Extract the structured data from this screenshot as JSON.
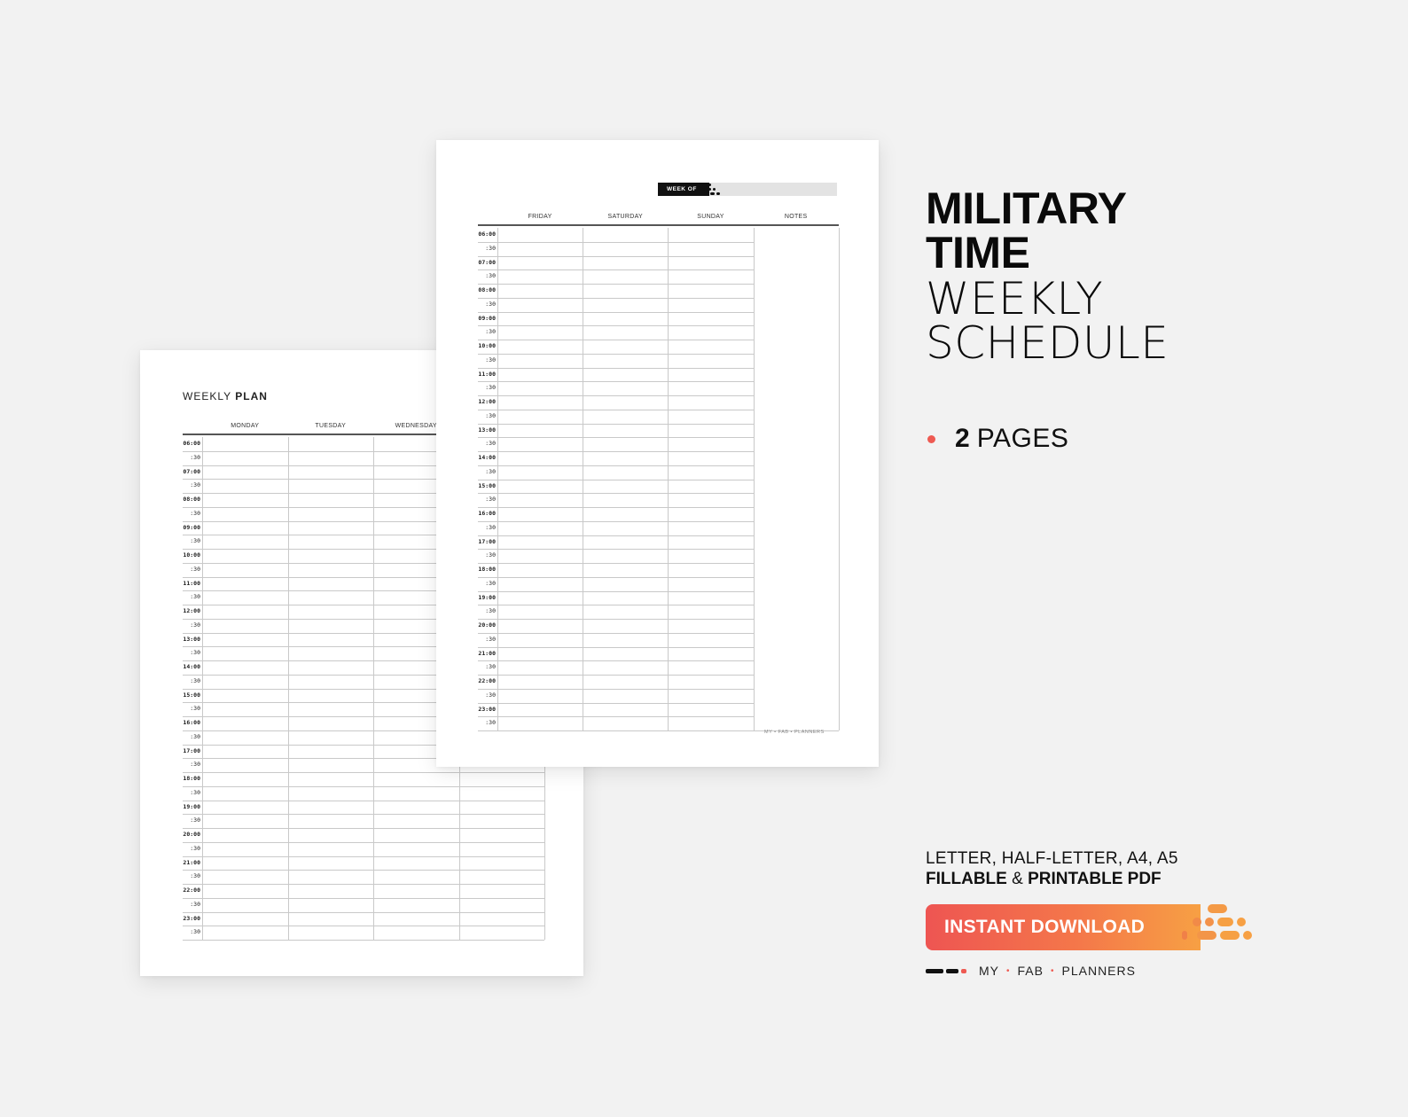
{
  "left_page": {
    "title_light": "WEEKLY ",
    "title_bold": "PLAN",
    "days": [
      "MONDAY",
      "TUESDAY",
      "WEDNESDAY",
      ""
    ]
  },
  "right_page": {
    "week_of_label": "WEEK OF",
    "days": [
      "FRIDAY",
      "SATURDAY",
      "SUNDAY",
      "NOTES"
    ],
    "brand_small": "MY • FAB • PLANNERS"
  },
  "times": [
    "06:00",
    ":30",
    "07:00",
    ":30",
    "08:00",
    ":30",
    "09:00",
    ":30",
    "10:00",
    ":30",
    "11:00",
    ":30",
    "12:00",
    ":30",
    "13:00",
    ":30",
    "14:00",
    ":30",
    "15:00",
    ":30",
    "16:00",
    ":30",
    "17:00",
    ":30",
    "18:00",
    ":30",
    "19:00",
    ":30",
    "20:00",
    ":30",
    "21:00",
    ":30",
    "22:00",
    ":30",
    "23:00",
    ":30"
  ],
  "promo": {
    "title_line1": "MILITARY",
    "title_line2": "TIME",
    "title_line3": "WEEKLY",
    "title_line4": "SCHEDULE",
    "pages_count": "2",
    "pages_word": "PAGES",
    "sizes": "LETTER, HALF-LETTER, A4, A5",
    "fillable": "FILLABLE",
    "amp": " & ",
    "printable": "PRINTABLE PDF",
    "download_label": "INSTANT DOWNLOAD",
    "brand_my": "MY",
    "brand_fab": "FAB",
    "brand_planners": "PLANNERS",
    "brand_sep": "•"
  },
  "colors": {
    "accent": "#ee5a52",
    "gradient_end": "#f7a044",
    "background": "#f2f2f2"
  }
}
